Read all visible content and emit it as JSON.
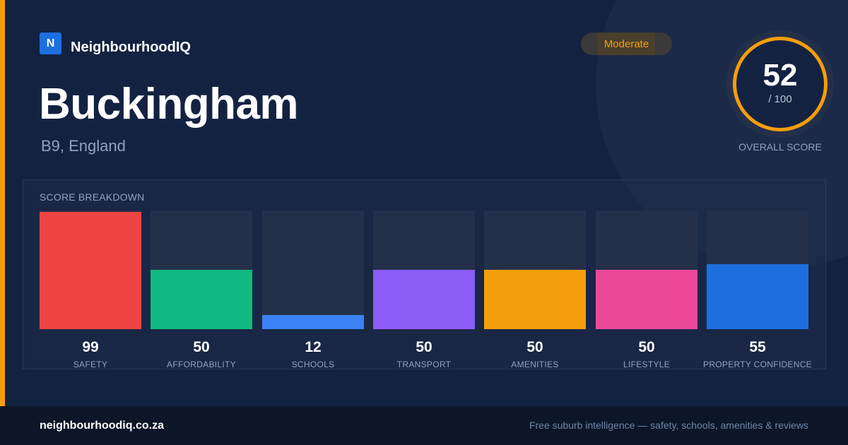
{
  "brand": {
    "logo_letter": "N",
    "name": "NeighbourhoodIQ"
  },
  "place": {
    "name": "Buckingham",
    "subtitle": "B9, England"
  },
  "rating": {
    "label": "Moderate",
    "color": "#f59e0b"
  },
  "overall": {
    "score": "52",
    "max": "/ 100",
    "caption": "OVERALL SCORE",
    "fraction": 0.52
  },
  "breakdown": {
    "title": "SCORE BREAKDOWN",
    "categories": [
      {
        "label": "SAFETY",
        "value": "99",
        "fraction": 0.99,
        "color": "#ef4444"
      },
      {
        "label": "AFFORDABILITY",
        "value": "50",
        "fraction": 0.5,
        "color": "#10b981"
      },
      {
        "label": "SCHOOLS",
        "value": "12",
        "fraction": 0.12,
        "color": "#3b82f6"
      },
      {
        "label": "TRANSPORT",
        "value": "50",
        "fraction": 0.5,
        "color": "#8b5cf6"
      },
      {
        "label": "AMENITIES",
        "value": "50",
        "fraction": 0.5,
        "color": "#f59e0b"
      },
      {
        "label": "LIFESTYLE",
        "value": "50",
        "fraction": 0.5,
        "color": "#ec4899"
      },
      {
        "label": "PROPERTY CONFIDENCE",
        "value": "55",
        "fraction": 0.55,
        "color": "#1d6fe0"
      }
    ]
  },
  "footer": {
    "site": "neighbourhoodiq.co.za",
    "tagline": "Free suburb intelligence — safety, schools, amenities & reviews"
  }
}
